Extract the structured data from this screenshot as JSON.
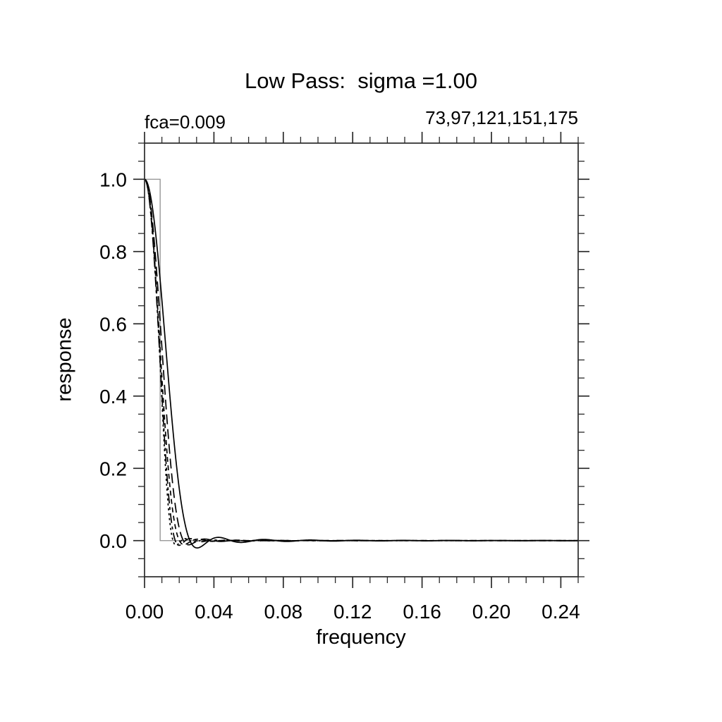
{
  "figure": {
    "background": "#ffffff"
  },
  "chart_data": {
    "type": "line",
    "title": "Low Pass:  sigma =1.00",
    "top_left_label": "fca=0.009",
    "top_right_label": "73,97,121,151,175",
    "xlabel": "frequency",
    "ylabel": "response",
    "xlim": [
      0.0,
      0.25
    ],
    "ylim": [
      -0.1,
      1.1
    ],
    "x_major_tick_values": [
      0.0,
      0.04,
      0.08,
      0.12,
      0.16,
      0.2,
      0.24
    ],
    "x_tick_labels": [
      "0.00",
      "0.04",
      "0.08",
      "0.12",
      "0.16",
      "0.20",
      "0.24"
    ],
    "x_minor_step": 0.01,
    "y_major_tick_values": [
      0.0,
      0.2,
      0.4,
      0.6,
      0.8,
      1.0
    ],
    "y_tick_labels": [
      "0.0",
      "0.2",
      "0.4",
      "0.6",
      "0.8",
      "1.0"
    ],
    "y_minor_step": 0.05,
    "grid": false,
    "legend": "none",
    "filter": {
      "model": "lanczos-windowed-sinc-response",
      "cutoff_frequency_fca": 0.009,
      "sigma": 1.0,
      "num_weights": [
        73,
        97,
        121,
        151,
        175
      ]
    },
    "series": [
      {
        "name": "nwgt=73",
        "nwgt": 73,
        "dash": "solid",
        "color": "#000000"
      },
      {
        "name": "nwgt=97",
        "nwgt": 97,
        "dash": "long-dash",
        "color": "#000000"
      },
      {
        "name": "nwgt=121",
        "nwgt": 121,
        "dash": "short-dash",
        "color": "#000000"
      },
      {
        "name": "nwgt=151",
        "nwgt": 151,
        "dash": "dash-dot",
        "color": "#000000"
      },
      {
        "name": "nwgt=175",
        "nwgt": 175,
        "dash": "dot",
        "color": "#000000"
      }
    ],
    "ideal_response": {
      "name": "ideal low-pass step",
      "points": [
        [
          0.0,
          1.0
        ],
        [
          0.009,
          1.0
        ],
        [
          0.009,
          0.0
        ],
        [
          0.25,
          0.0
        ]
      ],
      "color": "#8f8f8f"
    },
    "colors": {
      "curves": "#000000",
      "frame": "#2a2a2a",
      "text": "#000000"
    }
  }
}
